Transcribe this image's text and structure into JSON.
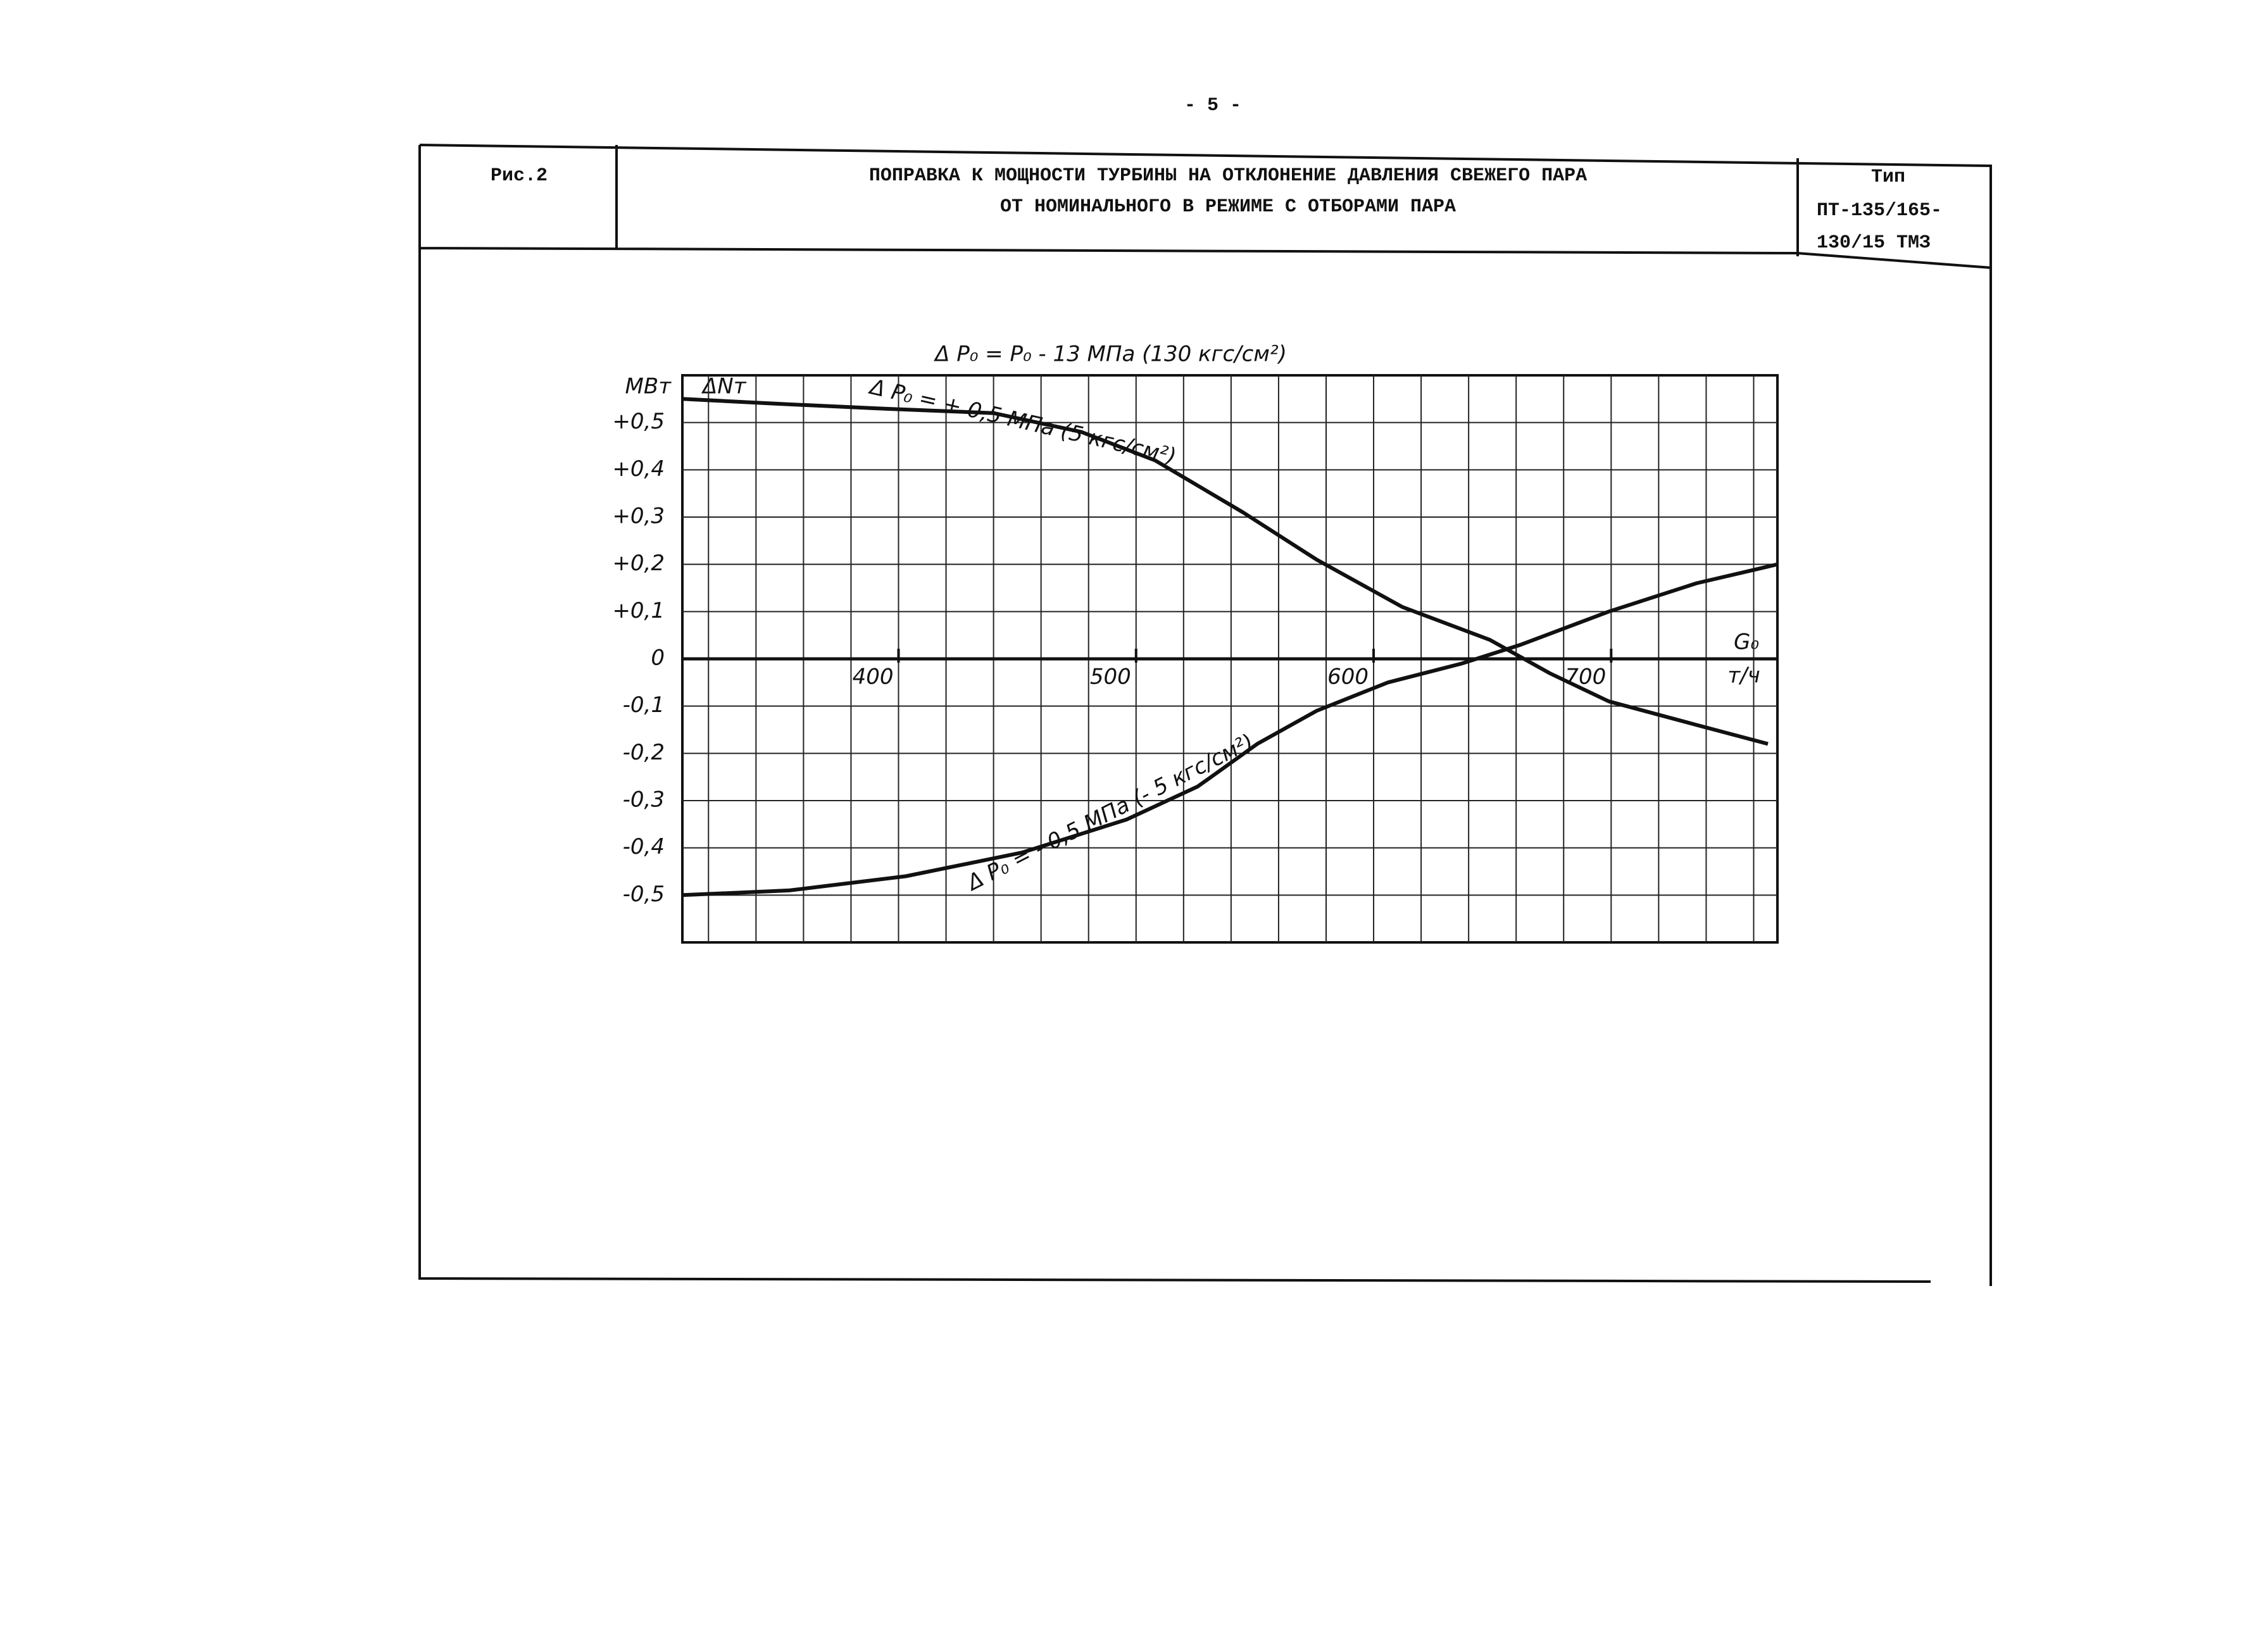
{
  "page": {
    "number": "- 5 -"
  },
  "header": {
    "figure": "Рис.2",
    "title_lines": [
      "ПОПРАВКА К МОЩНОСТИ ТУРБИНЫ НА ОТКЛОНЕНИЕ ДАВЛЕНИЯ СВЕЖЕГО ПАРА",
      "ОТ НОМИНАЛЬНОГО В РЕЖИМЕ С ОТБОРАМИ ПАРА"
    ],
    "type_lines": [
      "Тип",
      "ПТ-135/165-",
      "130/15 ТМЗ"
    ]
  },
  "chart_data": {
    "type": "line",
    "title": "Δ P₀ = P₀ - 13 МПа (130 кгс/см²)",
    "y_unit": "МВт",
    "y_label": "ΔNт",
    "x_label": "G₀",
    "x_unit": "т/ч",
    "xlim": [
      309,
      770
    ],
    "ylim": [
      -0.6,
      0.6
    ],
    "xticks": [
      400,
      500,
      600,
      700
    ],
    "xgrid": [
      320,
      340,
      360,
      380,
      400,
      420,
      440,
      460,
      480,
      500,
      520,
      540,
      560,
      580,
      600,
      620,
      640,
      660,
      680,
      700,
      720,
      740,
      760
    ],
    "yticks": [
      {
        "value": 0.5,
        "label": "+0,5"
      },
      {
        "value": 0.4,
        "label": "+0,4"
      },
      {
        "value": 0.3,
        "label": "+0,3"
      },
      {
        "value": 0.2,
        "label": "+0,2"
      },
      {
        "value": 0.1,
        "label": "+0,1"
      },
      0,
      {
        "value": -0.1,
        "label": "-0,1"
      },
      {
        "value": -0.2,
        "label": "-0,2"
      },
      {
        "value": -0.3,
        "label": "-0,3"
      },
      {
        "value": -0.4,
        "label": "-0,4"
      },
      {
        "value": -0.5,
        "label": "-0,5"
      }
    ],
    "grid": true,
    "series": [
      {
        "name": "Δ P₀ = + 0,5 МПа (5 кгс/см²)",
        "color": "#111",
        "x": [
          309,
          348,
          391,
          440,
          477,
          508,
          545,
          576,
          612,
          649,
          674,
          699,
          736,
          766
        ],
        "values": [
          0.55,
          0.54,
          0.53,
          0.52,
          0.48,
          0.42,
          0.31,
          0.21,
          0.11,
          0.04,
          -0.03,
          -0.09,
          -0.14,
          -0.18
        ]
      },
      {
        "name": "Δ P₀ = - 0,5 МПа (- 5 кгс/см²)",
        "color": "#111",
        "x": [
          309,
          354,
          403,
          452,
          496,
          526,
          551,
          576,
          606,
          637,
          662,
          699,
          736,
          770
        ],
        "values": [
          -0.5,
          -0.49,
          -0.46,
          -0.41,
          -0.34,
          -0.27,
          -0.18,
          -0.11,
          -0.05,
          -0.01,
          0.03,
          0.1,
          0.16,
          0.2
        ]
      }
    ]
  }
}
